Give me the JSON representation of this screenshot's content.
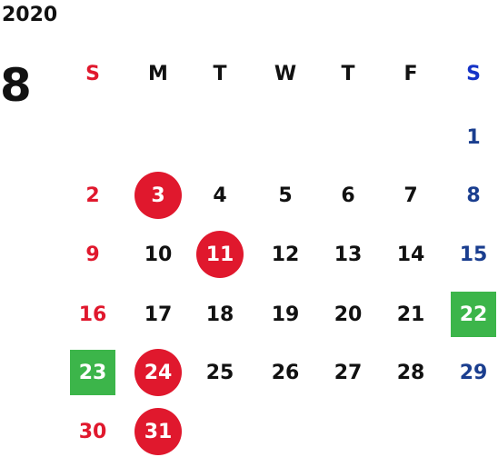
{
  "year": "2020",
  "month": "8",
  "colors": {
    "sunday": "#e0182d",
    "saturday": "#1a3e8f",
    "saturday_header": "#1533c7",
    "weekday": "#111111",
    "holiday_circle": "#e0182d",
    "highlight_square": "#3cb54a",
    "on_fill_text": "#ffffff"
  },
  "weekdays": [
    {
      "label": "S",
      "kind": "sunday"
    },
    {
      "label": "M",
      "kind": "weekday"
    },
    {
      "label": "T",
      "kind": "weekday"
    },
    {
      "label": "W",
      "kind": "weekday"
    },
    {
      "label": "T",
      "kind": "weekday"
    },
    {
      "label": "F",
      "kind": "weekday"
    },
    {
      "label": "S",
      "kind": "saturday"
    }
  ],
  "days": [
    {
      "n": "1",
      "row": 0,
      "col": 6,
      "mark": ""
    },
    {
      "n": "2",
      "row": 1,
      "col": 0,
      "mark": ""
    },
    {
      "n": "3",
      "row": 1,
      "col": 1,
      "mark": "circle"
    },
    {
      "n": "4",
      "row": 1,
      "col": 2,
      "mark": ""
    },
    {
      "n": "5",
      "row": 1,
      "col": 3,
      "mark": ""
    },
    {
      "n": "6",
      "row": 1,
      "col": 4,
      "mark": ""
    },
    {
      "n": "7",
      "row": 1,
      "col": 5,
      "mark": ""
    },
    {
      "n": "8",
      "row": 1,
      "col": 6,
      "mark": ""
    },
    {
      "n": "9",
      "row": 2,
      "col": 0,
      "mark": ""
    },
    {
      "n": "10",
      "row": 2,
      "col": 1,
      "mark": ""
    },
    {
      "n": "11",
      "row": 2,
      "col": 2,
      "mark": "circle"
    },
    {
      "n": "12",
      "row": 2,
      "col": 3,
      "mark": ""
    },
    {
      "n": "13",
      "row": 2,
      "col": 4,
      "mark": ""
    },
    {
      "n": "14",
      "row": 2,
      "col": 5,
      "mark": ""
    },
    {
      "n": "15",
      "row": 2,
      "col": 6,
      "mark": ""
    },
    {
      "n": "16",
      "row": 3,
      "col": 0,
      "mark": ""
    },
    {
      "n": "17",
      "row": 3,
      "col": 1,
      "mark": ""
    },
    {
      "n": "18",
      "row": 3,
      "col": 2,
      "mark": ""
    },
    {
      "n": "19",
      "row": 3,
      "col": 3,
      "mark": ""
    },
    {
      "n": "20",
      "row": 3,
      "col": 4,
      "mark": ""
    },
    {
      "n": "21",
      "row": 3,
      "col": 5,
      "mark": ""
    },
    {
      "n": "22",
      "row": 3,
      "col": 6,
      "mark": "square"
    },
    {
      "n": "23",
      "row": 4,
      "col": 0,
      "mark": "square"
    },
    {
      "n": "24",
      "row": 4,
      "col": 1,
      "mark": "circle"
    },
    {
      "n": "25",
      "row": 4,
      "col": 2,
      "mark": ""
    },
    {
      "n": "26",
      "row": 4,
      "col": 3,
      "mark": ""
    },
    {
      "n": "27",
      "row": 4,
      "col": 4,
      "mark": ""
    },
    {
      "n": "28",
      "row": 4,
      "col": 5,
      "mark": ""
    },
    {
      "n": "29",
      "row": 4,
      "col": 6,
      "mark": ""
    },
    {
      "n": "30",
      "row": 5,
      "col": 0,
      "mark": ""
    },
    {
      "n": "31",
      "row": 5,
      "col": 1,
      "mark": "circle"
    }
  ]
}
